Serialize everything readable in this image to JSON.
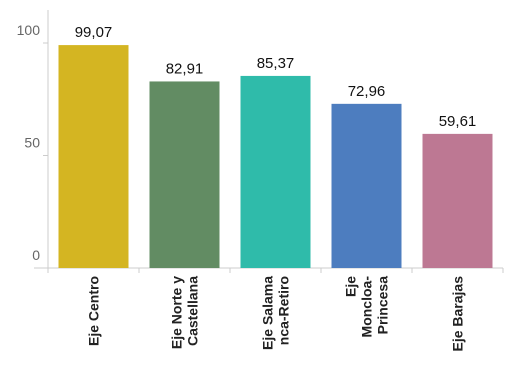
{
  "chart_data": {
    "type": "bar",
    "categories": [
      [
        "Eje Centro"
      ],
      [
        "Eje Norte y",
        "Castellana"
      ],
      [
        "Eje Salama",
        "nca-Retiro"
      ],
      [
        "Eje",
        "Moncloa-",
        "Princesa"
      ],
      [
        "Eje Barajas"
      ]
    ],
    "values": [
      99.07,
      82.91,
      85.37,
      72.96,
      59.61
    ],
    "value_labels": [
      "99,07",
      "82,91",
      "85,37",
      "72,96",
      "59,61"
    ],
    "colors": [
      "#d4b522",
      "#628c63",
      "#2fbbaa",
      "#4d7dbf",
      "#bd7893"
    ],
    "y_ticks": [
      0,
      50,
      100
    ],
    "ylim": [
      0,
      100
    ],
    "grid": false,
    "title": "",
    "xlabel": "",
    "ylabel": ""
  }
}
